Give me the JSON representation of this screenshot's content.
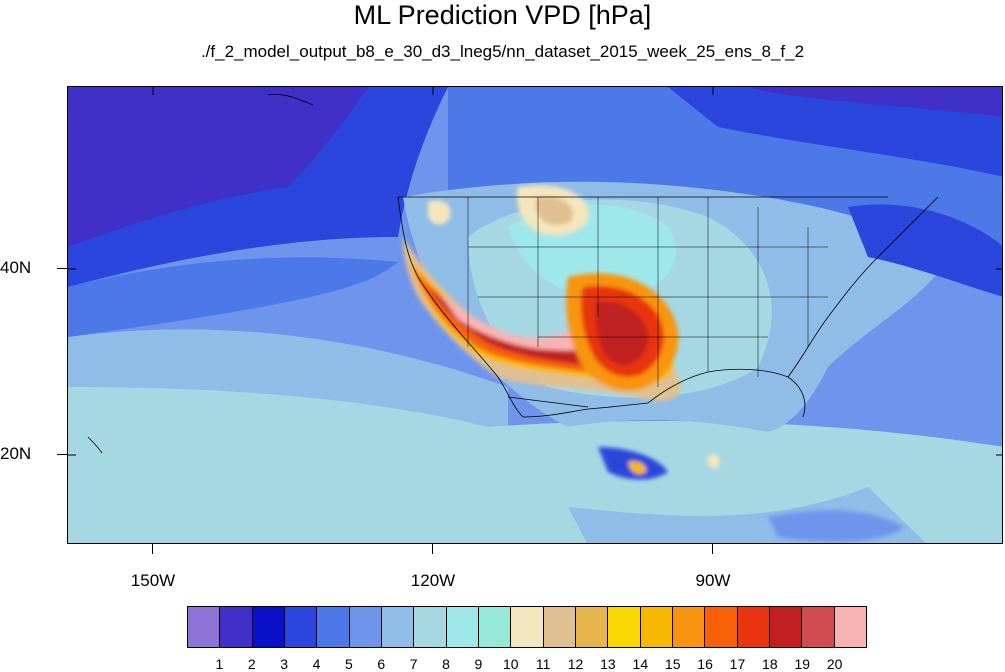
{
  "title": "ML Prediction VPD [hPa]",
  "subtitle": "./f_2_model_output_b8_e_30_d3_lneg5/nn_dataset_2015_week_25_ens_8_f_2",
  "axes": {
    "lat_labels": [
      "40N",
      "20N"
    ],
    "lon_labels": [
      "150W",
      "120W",
      "90W"
    ]
  },
  "colorbar": {
    "colors": [
      "#8f74d8",
      "#4030c8",
      "#0a10c8",
      "#2a46dc",
      "#4c78e8",
      "#6e94ec",
      "#90bce8",
      "#a6d8e4",
      "#9ee8ec",
      "#96e8d8",
      "#f4e6bc",
      "#e0c090",
      "#e8b44c",
      "#f8d800",
      "#f8b800",
      "#f89410",
      "#f86008",
      "#e83410",
      "#c02020",
      "#d04c50",
      "#f8b4b4"
    ],
    "labels": [
      "1",
      "2",
      "3",
      "4",
      "5",
      "6",
      "7",
      "8",
      "9",
      "10",
      "11",
      "12",
      "13",
      "14",
      "15",
      "16",
      "17",
      "18",
      "19",
      "20"
    ]
  }
}
